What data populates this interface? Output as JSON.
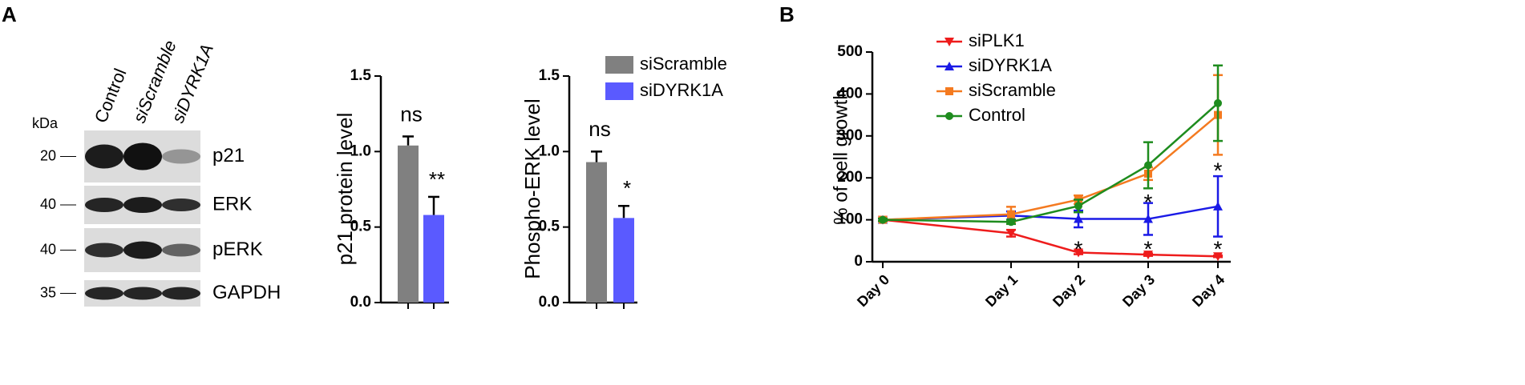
{
  "panel_labels": [
    "A",
    "B"
  ],
  "blot": {
    "unit": "kDa",
    "lanes": [
      "Control",
      "siScramble",
      "siDYRK1A"
    ],
    "rows": [
      {
        "label": "p21",
        "marker": 20
      },
      {
        "label": "ERK",
        "marker": 40
      },
      {
        "label": "pERK",
        "marker": 40
      },
      {
        "label": "GAPDH",
        "marker": 35
      }
    ]
  },
  "chart_data": [
    {
      "type": "bar",
      "y_label": "p21 protein level",
      "ylim": [
        0,
        1.5
      ],
      "yticks": [
        {
          "value": 0,
          "label": "0.0"
        },
        {
          "value": 0.5,
          "label": "0.5"
        },
        {
          "value": 1,
          "label": "1.0"
        },
        {
          "value": 1.5,
          "label": "1.5"
        }
      ],
      "categories": [
        null
      ],
      "series": [
        {
          "color": "#808080",
          "values": [
            1.04
          ],
          "errors": [
            0.06
          ],
          "annotations": [
            "ns"
          ]
        },
        {
          "color": "#5a5aff",
          "values": [
            0.58
          ],
          "errors": [
            0.12
          ],
          "annotations": [
            "**"
          ]
        }
      ]
    },
    {
      "type": "bar",
      "y_label": "Phospho-ERK level",
      "ylim": [
        0,
        1.5
      ],
      "yticks": [
        {
          "value": 0,
          "label": "0.0"
        },
        {
          "value": 0.5,
          "label": "0.5"
        },
        {
          "value": 1,
          "label": "1.0"
        },
        {
          "value": 1.5,
          "label": "1.5"
        }
      ],
      "categories": [
        null
      ],
      "legend": "upper right",
      "series": [
        {
          "name": "siScramble",
          "color": "#808080",
          "values": [
            0.93
          ],
          "errors": [
            0.07
          ],
          "annotations": [
            "ns"
          ]
        },
        {
          "name": "siDYRK1A",
          "color": "#5a5aff",
          "values": [
            0.56
          ],
          "errors": [
            0.08
          ],
          "annotations": [
            "*"
          ]
        }
      ]
    },
    {
      "type": "line",
      "y_label": "% of cell growth",
      "ylim": [
        0,
        500
      ],
      "yticks": [
        0,
        100,
        200,
        300,
        400,
        500
      ],
      "categories": [
        "Day 0",
        "Day 1",
        "Day 2",
        "Day 3",
        "Day 4"
      ],
      "legend": "upper left",
      "series": [
        {
          "name": "siPLK1",
          "color": "#ee1c1c",
          "marker": "triangle-down",
          "values": [
            100,
            68,
            22,
            17,
            13
          ],
          "errors": [
            3,
            8,
            4,
            3,
            2
          ]
        },
        {
          "name": "siDYRK1A",
          "color": "#1a1ae6",
          "marker": "triangle-up",
          "values": [
            100,
            110,
            102,
            102,
            132
          ],
          "errors": [
            3,
            10,
            20,
            38,
            72
          ]
        },
        {
          "name": "siScramble",
          "color": "#f47a20",
          "marker": "square",
          "values": [
            100,
            113,
            148,
            210,
            350
          ],
          "errors": [
            4,
            18,
            10,
            15,
            95
          ]
        },
        {
          "name": "Control",
          "color": "#1e8c1e",
          "marker": "circle",
          "values": [
            100,
            95,
            133,
            230,
            378
          ],
          "errors": [
            3,
            5,
            15,
            55,
            90
          ]
        }
      ],
      "annotations": [
        {
          "x": "Day 2",
          "y": 42,
          "text": "*"
        },
        {
          "x": "Day 3",
          "y": 42,
          "text": "*"
        },
        {
          "x": "Day 3",
          "y": 153,
          "text": "*"
        },
        {
          "x": "Day 4",
          "y": 42,
          "text": "*"
        },
        {
          "x": "Day 4",
          "y": 229,
          "text": "*"
        }
      ]
    }
  ]
}
